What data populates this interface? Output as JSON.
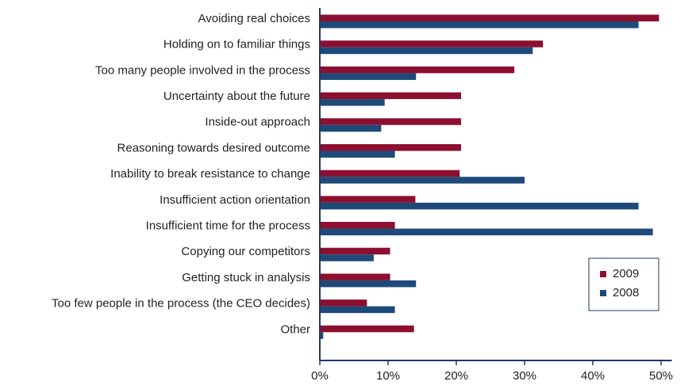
{
  "chart_data": {
    "type": "barh",
    "categories": [
      "Avoiding real choices",
      "Holding on to familiar things",
      "Too many people involved in the process",
      "Uncertainty about the future",
      "Inside-out approach",
      "Reasoning towards desired outcome",
      "Inability to break resistance to change",
      "Insufficient action orientation",
      "Insufficient time for the process",
      "Copying our competitors",
      "Getting stuck in analysis",
      "Too few people in the process (the CEO decides)",
      "Other"
    ],
    "series": [
      {
        "name": "2009",
        "color": "#8c0f30",
        "values": [
          49.7,
          32.7,
          28.5,
          20.7,
          20.7,
          20.7,
          20.5,
          14.0,
          11.0,
          10.3,
          10.3,
          6.9,
          13.8
        ]
      },
      {
        "name": "2008",
        "color": "#1d4a78",
        "values": [
          46.7,
          31.2,
          14.1,
          9.5,
          9.0,
          11.0,
          30.0,
          46.7,
          48.8,
          7.9,
          14.1,
          11.0,
          0.5
        ]
      }
    ],
    "xlim": [
      0,
      51
    ],
    "xticks": [
      {
        "value": 0,
        "label": "0%"
      },
      {
        "value": 10,
        "label": "10%"
      },
      {
        "value": 20,
        "label": "20%"
      },
      {
        "value": 30,
        "label": "30%"
      },
      {
        "value": 40,
        "label": "40%"
      },
      {
        "value": 50,
        "label": "50%"
      }
    ],
    "legend": "lower right"
  }
}
